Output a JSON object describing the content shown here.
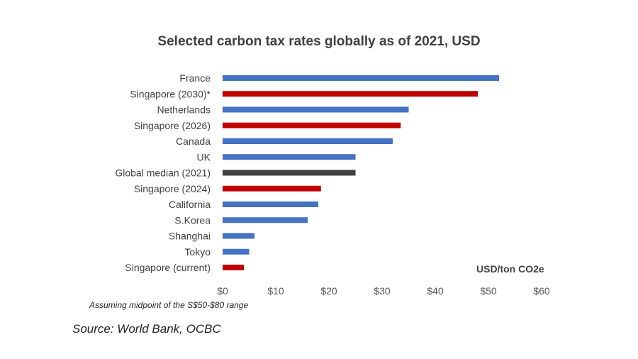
{
  "title": "Selected carbon tax rates globally as of 2021, USD",
  "unit_label": "USD/ton CO2e",
  "footnote": "Assuming midpoint of the S$50-$80 range",
  "source": "Source: World Bank, OCBC",
  "colors": {
    "other": "#4472c4",
    "singapore": "#c00000",
    "median": "#404040"
  },
  "chart_data": {
    "type": "bar",
    "orientation": "horizontal",
    "categories": [
      "France",
      "Singapore (2030)*",
      "Netherlands",
      "Singapore (2026)",
      "Canada",
      "UK",
      "Global median (2021)",
      "Singapore (2024)",
      "California",
      "S.Korea",
      "Shanghai",
      "Tokyo",
      "Singapore (current)"
    ],
    "values": [
      52,
      48,
      35,
      33.5,
      32,
      25,
      25,
      18.5,
      18,
      16,
      6,
      5,
      4
    ],
    "bar_groups": [
      "other",
      "singapore",
      "other",
      "singapore",
      "other",
      "other",
      "median",
      "singapore",
      "other",
      "other",
      "other",
      "other",
      "singapore"
    ],
    "xlim": [
      0,
      60
    ],
    "x_ticks": [
      "$0",
      "$10",
      "$20",
      "$30",
      "$40",
      "$50",
      "$60"
    ],
    "grid": false,
    "legend": "none"
  }
}
